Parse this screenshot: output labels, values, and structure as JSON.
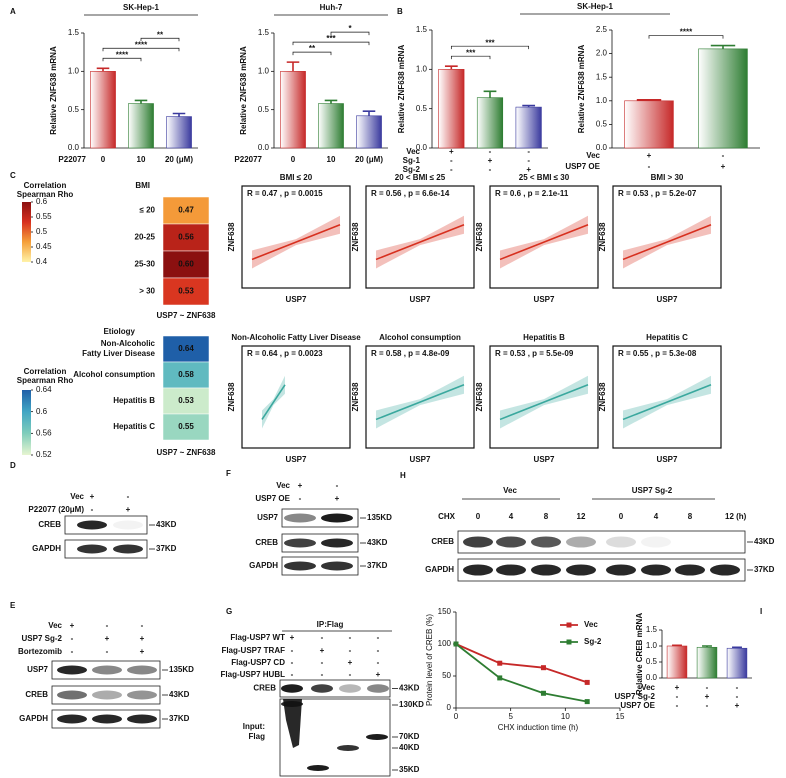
{
  "panel_letters": [
    "A",
    "B",
    "C",
    "D",
    "E",
    "F",
    "G",
    "H",
    "I"
  ],
  "panel_b_title": "SK-Hep-1",
  "chart_data": [
    {
      "type": "bar",
      "title": "SK-Hep-1",
      "y_label": "Relative ZNF638 mRNA",
      "conditions": [
        {
          "label": "P22077",
          "marks": [
            "0",
            "10",
            "20 (μM)"
          ]
        }
      ],
      "values": [
        1.0,
        0.58,
        0.41
      ],
      "errors": [
        0.04,
        0.04,
        0.04
      ],
      "colors": [
        "#c62828",
        "#2e7d32",
        "#3a3a9e"
      ],
      "ylim": [
        0,
        1.5
      ],
      "yticks": [
        {
          "value": 0,
          "label": "0.0"
        },
        0.5,
        {
          "value": 1,
          "label": "1.0"
        },
        1.5
      ],
      "significance": [
        {
          "label": "****",
          "pair": [
            0,
            1
          ]
        },
        {
          "label": "****",
          "pair": [
            0,
            2
          ]
        },
        {
          "label": "**",
          "pair": [
            1,
            2
          ]
        }
      ]
    },
    {
      "type": "bar",
      "title": "Huh-7",
      "y_label": "Relative ZNF638 mRNA",
      "conditions": [
        {
          "label": "P22077",
          "marks": [
            "0",
            "10",
            "20 (μM)"
          ]
        }
      ],
      "values": [
        1.0,
        0.58,
        0.42
      ],
      "errors": [
        0.12,
        0.04,
        0.06
      ],
      "colors": [
        "#c62828",
        "#2e7d32",
        "#3a3a9e"
      ],
      "ylim": [
        0,
        1.5
      ],
      "yticks": [
        {
          "value": 0,
          "label": "0.0"
        },
        0.5,
        {
          "value": 1,
          "label": "1.0"
        },
        1.5
      ],
      "significance": [
        {
          "label": "**",
          "pair": [
            0,
            1
          ]
        },
        {
          "label": "***",
          "pair": [
            0,
            2
          ]
        },
        {
          "label": "*",
          "pair": [
            1,
            2
          ]
        }
      ]
    },
    {
      "type": "bar",
      "y_label": "Relative ZNF638 mRNA",
      "conditions": [
        {
          "label": "Vec",
          "marks": [
            "+",
            "-",
            "-"
          ]
        },
        {
          "label": "Sg-1",
          "marks": [
            "-",
            "+",
            "-"
          ]
        },
        {
          "label": "Sg-2",
          "marks": [
            "-",
            "-",
            "+"
          ]
        }
      ],
      "values": [
        1.0,
        0.64,
        0.52
      ],
      "errors": [
        0.04,
        0.08,
        0.02
      ],
      "colors": [
        "#c62828",
        "#2e7d32",
        "#3a3a9e"
      ],
      "ylim": [
        0,
        1.5
      ],
      "yticks": [
        {
          "value": 0,
          "label": "0.0"
        },
        0.5,
        {
          "value": 1,
          "label": "1.0"
        },
        1.5
      ],
      "significance": [
        {
          "label": "***",
          "pair": [
            0,
            1
          ]
        },
        {
          "label": "***",
          "pair": [
            0,
            2
          ]
        }
      ]
    },
    {
      "type": "bar",
      "y_label": "Relative ZNF638 mRNA",
      "conditions": [
        {
          "label": "Vec",
          "marks": [
            "+",
            "-"
          ]
        },
        {
          "label": "USP7 OE",
          "marks": [
            "-",
            "+"
          ]
        }
      ],
      "values": [
        1.0,
        2.1
      ],
      "errors": [
        0.02,
        0.07
      ],
      "colors": [
        "#c62828",
        "#2e7d32"
      ],
      "ylim": [
        0,
        2.5
      ],
      "yticks": [
        {
          "value": 0,
          "label": "0.0"
        },
        0.5,
        {
          "value": 1,
          "label": "1.0"
        },
        1.5,
        {
          "value": 2,
          "label": "2.0"
        },
        2.5
      ],
      "significance": [
        {
          "label": "****",
          "pair": [
            0,
            1
          ]
        }
      ]
    },
    {
      "type": "line",
      "y_label": "Protein level of CREB (%)",
      "x_label": "CHX induction time (h)",
      "x": [
        0,
        4,
        8,
        12
      ],
      "series": [
        {
          "name": "Vec",
          "color": "#c62828",
          "values": [
            100,
            70,
            63,
            40
          ]
        },
        {
          "name": "Sg-2",
          "color": "#2e7d32",
          "values": [
            100,
            47,
            23,
            10
          ]
        }
      ],
      "xlim": [
        0,
        15
      ],
      "xticks": [
        0,
        5,
        10,
        15
      ],
      "ylim": [
        0,
        150
      ],
      "yticks": [
        0,
        50,
        100,
        150
      ]
    },
    {
      "type": "bar",
      "y_label": "Relative CREB mRNA",
      "conditions": [
        {
          "label": "Vec",
          "marks": [
            "+",
            "-",
            "-"
          ]
        },
        {
          "label": "USP7 Sg-2",
          "marks": [
            "-",
            "+",
            "-"
          ]
        },
        {
          "label": "USP7 OE",
          "marks": [
            "-",
            "-",
            "+"
          ]
        }
      ],
      "values": [
        1.0,
        0.96,
        0.93
      ],
      "errors": [
        0.02,
        0.04,
        0.03
      ],
      "colors": [
        "#c62828",
        "#2e7d32",
        "#3a3a9e"
      ],
      "ylim": [
        0,
        1.5
      ],
      "yticks": [
        {
          "value": 0,
          "label": "0.0"
        },
        0.5,
        {
          "value": 1,
          "label": "1.0"
        },
        1.5
      ],
      "significance": []
    }
  ],
  "heatmaps": [
    {
      "group_label": "BMI",
      "row_labels": [
        [
          "≤ 20"
        ],
        [
          "20-25"
        ],
        [
          "25-30"
        ],
        [
          "> 30"
        ]
      ],
      "values": [
        0.47,
        0.56,
        0.6,
        0.53
      ],
      "value_labels": [
        "0.47",
        "0.56",
        "0.60",
        "0.53"
      ],
      "footer": "USP7 ~ ZNF638",
      "colorbar": {
        "title": [
          "Correlation",
          "Spearman Rho"
        ],
        "lim": [
          0.4,
          0.6
        ],
        "ticks": [
          0.6,
          0.55,
          0.5,
          0.45,
          0.4
        ],
        "colors": [
          "#fff2a8",
          "#f5a03a",
          "#d7301f",
          "#8b1010"
        ]
      }
    },
    {
      "group_label": "Etiology",
      "row_labels": [
        [
          "Non-Alcoholic",
          "Fatty Liver Disease"
        ],
        [
          "Alcohol consumption"
        ],
        [
          "Hepatitis B"
        ],
        [
          "Hepatitis C"
        ]
      ],
      "values": [
        0.64,
        0.58,
        0.53,
        0.55
      ],
      "value_labels": [
        "0.64",
        "0.58",
        "0.53",
        "0.55"
      ],
      "footer": "USP7 ~ ZNF638",
      "colorbar": {
        "title": [
          "Correlation",
          "Spearman Rho"
        ],
        "lim": [
          0.52,
          0.64
        ],
        "ticks": [
          0.64,
          0.6,
          0.56,
          0.52
        ],
        "colors": [
          "#e6f5d0",
          "#7fcdbb",
          "#41a6c4",
          "#1f5fa8"
        ]
      }
    }
  ],
  "scatter_panels": [
    {
      "title": "BMI ≤ 20",
      "stats": "R = 0.47 , p = 0.0015",
      "x_label": "USP7",
      "y_label": "ZNF638",
      "fit_color": "#d7301f"
    },
    {
      "title": "20 < BMI ≤ 25",
      "stats": "R = 0.56 , p = 6.6e-14",
      "x_label": "USP7",
      "y_label": "ZNF638",
      "fit_color": "#d7301f"
    },
    {
      "title": "25 < BMI ≤ 30",
      "stats": "R = 0.6 , p = 2.1e-11",
      "x_label": "USP7",
      "y_label": "ZNF638",
      "fit_color": "#d7301f"
    },
    {
      "title": "BMI > 30",
      "stats": "R = 0.53 , p = 5.2e-07",
      "x_label": "USP7",
      "y_label": "ZNF638",
      "fit_color": "#d7301f"
    },
    {
      "title": "Non-Alcoholic Fatty Liver Disease",
      "stats": "R = 0.64 , p = 0.0023",
      "x_label": "USP7",
      "y_label": "ZNF638",
      "fit_color": "#3aa89e"
    },
    {
      "title": "Alcohol consumption",
      "stats": "R = 0.58 , p = 4.8e-09",
      "x_label": "USP7",
      "y_label": "ZNF638",
      "fit_color": "#3aa89e"
    },
    {
      "title": "Hepatitis B",
      "stats": "R = 0.53 , p = 5.5e-09",
      "x_label": "USP7",
      "y_label": "ZNF638",
      "fit_color": "#3aa89e"
    },
    {
      "title": "Hepatitis C",
      "stats": "R = 0.55 , p = 5.3e-08",
      "x_label": "USP7",
      "y_label": "ZNF638",
      "fit_color": "#3aa89e"
    }
  ],
  "blots": {
    "D": {
      "conditions": [
        {
          "label": "Vec",
          "marks": [
            "+",
            "-"
          ]
        },
        {
          "label": "P22077 (20μM)",
          "marks": [
            "-",
            "+"
          ]
        }
      ],
      "rows": [
        {
          "label": "CREB",
          "size": "43KD"
        },
        {
          "label": "GAPDH",
          "size": "37KD"
        }
      ]
    },
    "E": {
      "conditions": [
        {
          "label": "Vec",
          "marks": [
            "+",
            "-",
            "-"
          ]
        },
        {
          "label": "USP7 Sg-2",
          "marks": [
            "-",
            "+",
            "+"
          ]
        },
        {
          "label": "Bortezomib",
          "marks": [
            "-",
            "-",
            "+"
          ]
        }
      ],
      "rows": [
        {
          "label": "USP7",
          "size": "135KD"
        },
        {
          "label": "CREB",
          "size": "43KD"
        },
        {
          "label": "GAPDH",
          "size": "37KD"
        }
      ]
    },
    "F": {
      "conditions": [
        {
          "label": "Vec",
          "marks": [
            "+",
            "-"
          ]
        },
        {
          "label": "USP7 OE",
          "marks": [
            "-",
            "+"
          ]
        }
      ],
      "rows": [
        {
          "label": "USP7",
          "size": "135KD"
        },
        {
          "label": "CREB",
          "size": "43KD"
        },
        {
          "label": "GAPDH",
          "size": "37KD"
        }
      ]
    },
    "G": {
      "header": "IP:Flag",
      "conditions": [
        {
          "label": "Flag-USP7 WT",
          "marks": [
            "+",
            "-",
            "-",
            "-"
          ]
        },
        {
          "label": "Flag-USP7 TRAF",
          "marks": [
            "-",
            "+",
            "-",
            "-"
          ]
        },
        {
          "label": "Flag-USP7 CD",
          "marks": [
            "-",
            "-",
            "+",
            "-"
          ]
        },
        {
          "label": "Flag-USP7 HUBL",
          "marks": [
            "-",
            "-",
            "-",
            "+"
          ]
        }
      ],
      "rows": [
        {
          "label": "CREB",
          "size": "43KD"
        }
      ],
      "input_label": [
        "Input:",
        "Flag"
      ],
      "input_sizes": [
        "130KD",
        "70KD",
        "40KD",
        "35KD"
      ]
    },
    "H": {
      "groups": [
        "Vec",
        "USP7 Sg-2"
      ],
      "time_label": "CHX",
      "times": [
        "0",
        "4",
        "8",
        "12",
        "0",
        "4",
        "8",
        "12 (h)"
      ],
      "rows": [
        {
          "label": "CREB",
          "size": "43KD"
        },
        {
          "label": "GAPDH",
          "size": "37KD"
        }
      ]
    }
  }
}
